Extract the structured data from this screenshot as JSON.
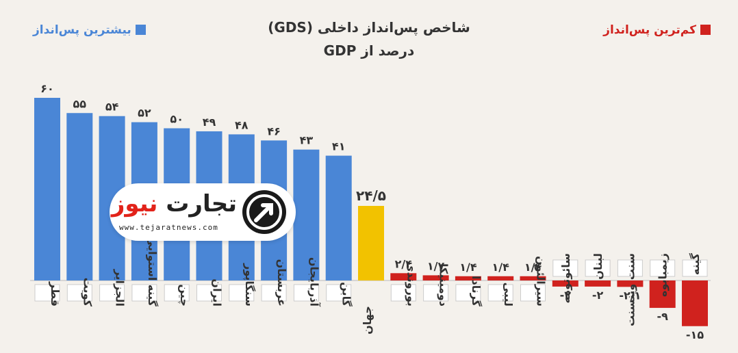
{
  "header": {
    "title": "شاخص پس‌انداز داخلی (GDS)",
    "subtitle": "درصد از GDP",
    "legend_high": "بیشترین پس‌انداز",
    "legend_low": "کم‌ترین پس‌انداز"
  },
  "logo": {
    "name_part1": "تجارت",
    "name_part2": "نیوز",
    "url": "www.tejaratnews.com"
  },
  "colors": {
    "high": "#4a86d6",
    "world": "#f2c200",
    "low": "#d0221e"
  },
  "chart_data": {
    "type": "bar",
    "title": "شاخص پس‌انداز داخلی (GDS)",
    "subtitle": "درصد از GDP",
    "grid": false,
    "legend_placement": "top",
    "categories": [
      "قطر",
      "کویت",
      "الجزایر",
      "گینه استوایی",
      "چین",
      "ایران",
      "سنگاپور",
      "عربستان",
      "آذربایجان",
      "گابن",
      "جهان",
      "بوروندی",
      "دومینیکا",
      "گرنادا",
      "لیبی",
      "سیرالئون",
      "سائوتومه",
      "لبنان",
      "سنت وینسنت",
      "زیمبابوه",
      "گینه"
    ],
    "values": [
      60,
      55,
      54,
      52,
      50,
      49,
      48,
      46,
      43,
      41,
      24.5,
      2.4,
      1.7,
      1.4,
      1.4,
      1.4,
      -2,
      -2,
      -2.1,
      -9,
      -15
    ],
    "value_labels": [
      "۶۰",
      "۵۵",
      "۵۴",
      "۵۲",
      "۵۰",
      "۴۹",
      "۴۸",
      "۴۶",
      "۴۳",
      "۴۱",
      "۲۴/۵",
      "۲/۴",
      "۱/۷",
      "۱/۴",
      "۱/۴",
      "۱/۴",
      "-۲",
      "-۲",
      "-۲/۱",
      "-۹",
      "-۱۵"
    ],
    "groups": [
      "high",
      "high",
      "high",
      "high",
      "high",
      "high",
      "high",
      "high",
      "high",
      "high",
      "world",
      "low",
      "low",
      "low",
      "low",
      "low",
      "low",
      "low",
      "low",
      "low",
      "low"
    ]
  }
}
